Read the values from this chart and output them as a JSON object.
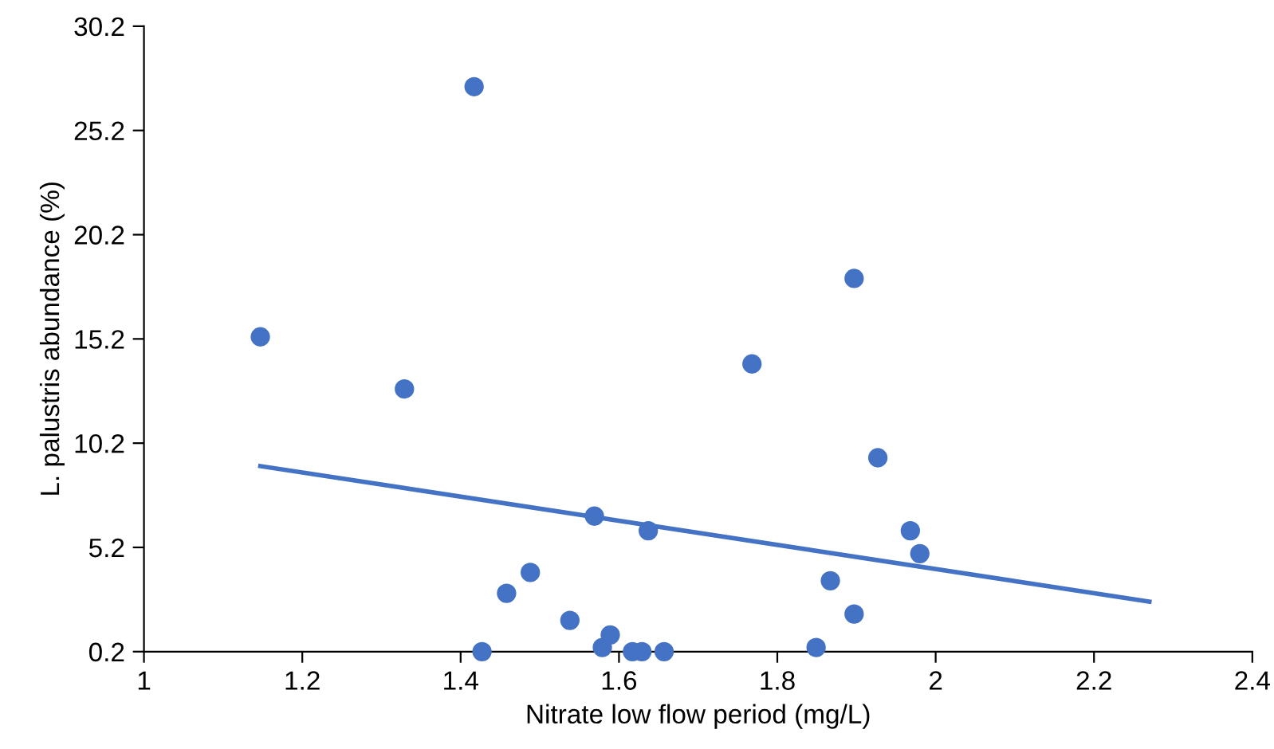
{
  "chart_data": {
    "type": "scatter",
    "xlabel": "Nitrate low flow period (mg/L)",
    "ylabel": "L. palustris abundance (%)",
    "xlim": [
      1,
      2.4
    ],
    "xticks": [
      1,
      1.2,
      1.4,
      1.6,
      1.8,
      2,
      2.2,
      2.4
    ],
    "ylim": [
      0.2,
      30.2
    ],
    "yticks": [
      0.2,
      5.2,
      10.2,
      15.2,
      20.2,
      25.2,
      30.2
    ],
    "grid": false,
    "legend": false,
    "marker": "circle",
    "series": [
      {
        "color": "#4472c4",
        "x": [
          1.147,
          1.329,
          1.417,
          1.427,
          1.458,
          1.488,
          1.538,
          1.569,
          1.579,
          1.589,
          1.617,
          1.629,
          1.637,
          1.657,
          1.768,
          1.849,
          1.867,
          1.897,
          1.897,
          1.927,
          1.968,
          1.98
        ],
        "values": [
          15.3,
          12.8,
          27.3,
          0.2,
          3.0,
          4.0,
          1.7,
          6.7,
          0.4,
          1.0,
          0.2,
          0.2,
          6.0,
          0.2,
          14.0,
          0.4,
          3.6,
          2.0,
          18.1,
          9.5,
          6.0,
          4.9
        ]
      },
      {
        "type": "line",
        "color": "#4472c4",
        "marker": "none",
        "x": [
          1.147,
          2.27
        ],
        "values": [
          9.1,
          2.6
        ]
      }
    ]
  }
}
